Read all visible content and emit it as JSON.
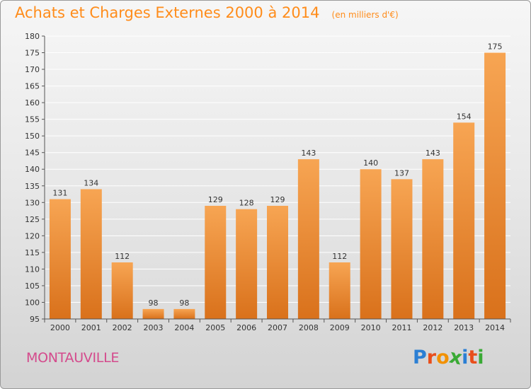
{
  "header": {
    "title": "Achats et Charges Externes 2000 à 2014",
    "unit": "(en milliers d'€)"
  },
  "footer": {
    "commune": "MONTAUVILLE",
    "logo_text": "Proxiti",
    "logo_letters": [
      "P",
      "r",
      "o",
      "x",
      "i",
      "t",
      "i"
    ],
    "logo_colors": [
      "#2b7fd4",
      "#e94e1b",
      "#f29100",
      "#3aaa35",
      "#2b7fd4",
      "#e94e1b",
      "#3aaa35"
    ]
  },
  "colors": {
    "title": "#ff8c1a",
    "commune": "#d44a8c",
    "bar_light": "#f7a553",
    "bar_dark": "#d9711b"
  },
  "chart_data": {
    "type": "bar",
    "title": "Achats et Charges Externes 2000 à 2014",
    "subtitle": "(en milliers d'€)",
    "categories": [
      "2000",
      "2001",
      "2002",
      "2003",
      "2004",
      "2005",
      "2006",
      "2007",
      "2008",
      "2009",
      "2010",
      "2011",
      "2012",
      "2013",
      "2014"
    ],
    "values": [
      131,
      134,
      112,
      98,
      98,
      129,
      128,
      129,
      143,
      112,
      140,
      137,
      143,
      154,
      175
    ],
    "ylim": [
      95,
      180
    ],
    "yticks": [
      95,
      100,
      105,
      110,
      115,
      120,
      125,
      130,
      135,
      140,
      145,
      150,
      155,
      160,
      165,
      170,
      175,
      180
    ],
    "grid": true,
    "data_labels": true
  }
}
